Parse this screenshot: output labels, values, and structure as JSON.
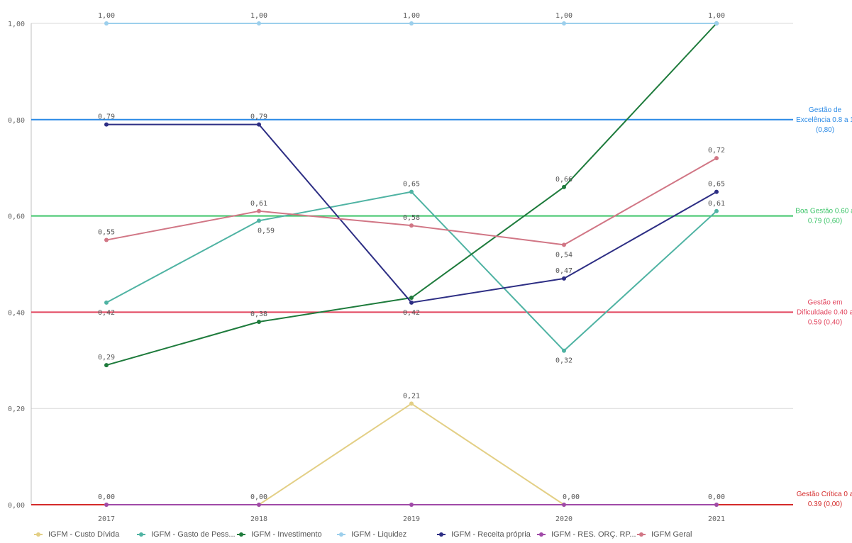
{
  "chart_data": {
    "type": "line",
    "categories": [
      "2017",
      "2018",
      "2019",
      "2020",
      "2021"
    ],
    "ylim": [
      0,
      1
    ],
    "y_ticks": [
      "0,00",
      "0,20",
      "0,40",
      "0,60",
      "0,80",
      "1,00"
    ],
    "grid": true,
    "legend_position": "bottom",
    "series": [
      {
        "name": "IGFM - Custo Dívida",
        "color": "#e3cf85",
        "values": [
          0.0,
          0.0,
          0.21,
          0.0,
          0.0
        ],
        "labels": [
          "0,00",
          "0,00",
          "0,21",
          "0,00",
          "0,00"
        ]
      },
      {
        "name": "IGFM - Gasto de Pess...",
        "color": "#4fb3a3",
        "values": [
          0.42,
          0.59,
          0.65,
          0.32,
          0.61
        ],
        "labels": [
          "0,42",
          "0,59",
          "0,65",
          "0,32",
          "0,61"
        ]
      },
      {
        "name": "IGFM - Investimento",
        "color": "#1e7b3c",
        "values": [
          0.29,
          0.38,
          0.43,
          0.66,
          1.0
        ],
        "labels": [
          "0,29",
          "0,38",
          "",
          "0,66",
          ""
        ]
      },
      {
        "name": "IGFM - Liquidez",
        "color": "#9ccfec",
        "values": [
          1.0,
          1.0,
          1.0,
          1.0,
          1.0
        ],
        "labels": [
          "1,00",
          "1,00",
          "1,00",
          "1,00",
          "1,00"
        ]
      },
      {
        "name": "IGFM - Receita própria",
        "color": "#2d2e84",
        "values": [
          0.79,
          0.79,
          0.42,
          0.47,
          0.65
        ],
        "labels": [
          "0,79",
          "0,79",
          "0,42",
          "0,47",
          "0,65"
        ]
      },
      {
        "name": "IGFM - RES. ORÇ. RP...",
        "color": "#a04aa8",
        "values": [
          0.0,
          0.0,
          0.0,
          0.0,
          0.0
        ],
        "labels": [
          "",
          "",
          "",
          "",
          ""
        ]
      },
      {
        "name": "IGFM Geral",
        "color": "#d17685",
        "values": [
          0.55,
          0.61,
          0.58,
          0.54,
          0.72
        ],
        "labels": [
          "0,55",
          "0,61",
          "0,58",
          "0,54",
          "0,72"
        ]
      }
    ],
    "reference_lines": [
      {
        "value": 0.8,
        "color": "#2a8ae6",
        "label": [
          "Gestão de",
          "Excelência 0.8 a 1",
          "(0,80)"
        ]
      },
      {
        "value": 0.6,
        "color": "#3ec56a",
        "label": [
          "Boa Gestão 0.60 a",
          "0.79 (0,60)"
        ]
      },
      {
        "value": 0.4,
        "color": "#e2455e",
        "label": [
          "Gestão em",
          "Dificuldade 0.40 a",
          "0.59 (0,40)"
        ]
      },
      {
        "value": 0.0,
        "color": "#d42a2a",
        "label": [
          "Gestão Crítica 0 a",
          "0.39 (0,00)"
        ]
      }
    ]
  }
}
